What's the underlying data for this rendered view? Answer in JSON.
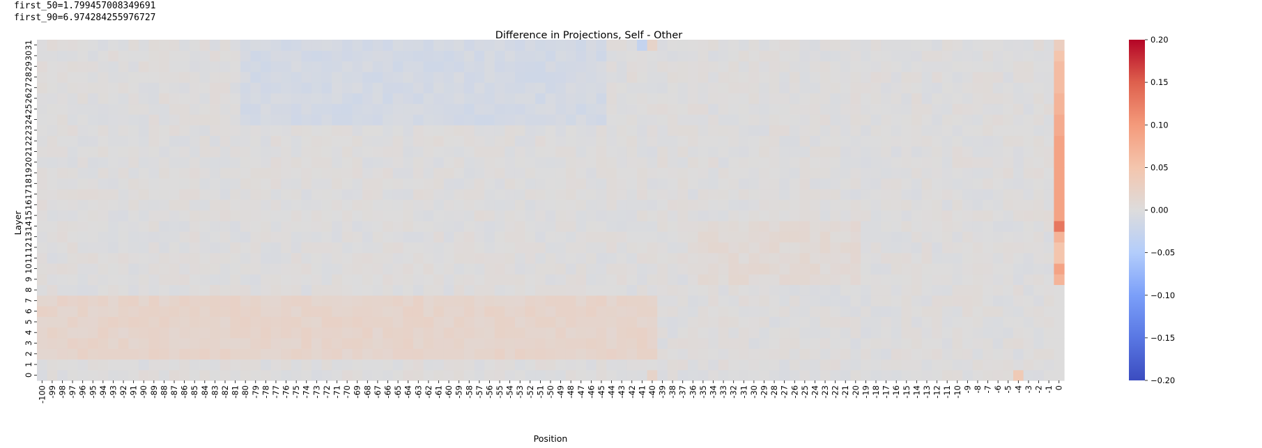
{
  "notes": {
    "first_50": "first_50=1.799457008349691",
    "first_90": "first_90=6.974284255976727"
  },
  "chart_data": {
    "type": "heatmap",
    "title": "Difference in Projections, Self - Other",
    "xlabel": "Position",
    "ylabel": "Layer",
    "x": [
      -100,
      -99,
      -98,
      -97,
      -96,
      -95,
      -94,
      -93,
      -92,
      -91,
      -90,
      -89,
      -88,
      -87,
      -86,
      -85,
      -84,
      -83,
      -82,
      -81,
      -80,
      -79,
      -78,
      -77,
      -76,
      -75,
      -74,
      -73,
      -72,
      -71,
      -70,
      -69,
      -68,
      -67,
      -66,
      -65,
      -64,
      -63,
      -62,
      -61,
      -60,
      -59,
      -58,
      -57,
      -56,
      -55,
      -54,
      -53,
      -52,
      -51,
      -50,
      -49,
      -48,
      -47,
      -46,
      -45,
      -44,
      -43,
      -42,
      -41,
      -40,
      -39,
      -38,
      -37,
      -36,
      -35,
      -34,
      -33,
      -32,
      -31,
      -30,
      -29,
      -28,
      -27,
      -26,
      -25,
      -24,
      -23,
      -22,
      -21,
      -20,
      -19,
      -18,
      -17,
      -16,
      -15,
      -14,
      -13,
      -12,
      -11,
      -10,
      -9,
      -8,
      -7,
      -6,
      -5,
      -4,
      -3,
      -2,
      -1,
      0
    ],
    "y": [
      0,
      1,
      2,
      3,
      4,
      5,
      6,
      7,
      8,
      9,
      10,
      11,
      12,
      13,
      14,
      15,
      16,
      17,
      18,
      19,
      20,
      21,
      22,
      23,
      24,
      25,
      26,
      27,
      28,
      29,
      30,
      31
    ],
    "value_range": [
      -0.2,
      0.2
    ],
    "colormap": "coolwarm",
    "colorbar": {
      "ticks": [
        0.2,
        0.15,
        0.1,
        0.05,
        0.0,
        -0.05,
        -0.1,
        -0.15,
        -0.2
      ],
      "tick_labels": [
        "0.20",
        "0.15",
        "0.10",
        "0.05",
        "0.00",
        "−0.05",
        "−0.10",
        "−0.15",
        "−0.20"
      ]
    },
    "column_0_values_by_layer": [
      0.0,
      0.0,
      0.0,
      0.0,
      0.0,
      0.0,
      0.0,
      0.0,
      0.0,
      0.07,
      0.09,
      0.05,
      0.05,
      0.07,
      0.13,
      0.09,
      0.09,
      0.09,
      0.09,
      0.09,
      0.09,
      0.09,
      0.09,
      0.08,
      0.08,
      0.07,
      0.07,
      0.06,
      0.06,
      0.06,
      0.05,
      0.03
    ],
    "notable_cells": [
      {
        "x": -4,
        "layer": 0,
        "value": 0.04
      },
      {
        "x": -41,
        "layer": 31,
        "value": -0.03
      },
      {
        "x": -40,
        "layer": 31,
        "value": 0.02
      },
      {
        "x": -40,
        "layer": 0,
        "value": 0.02
      }
    ],
    "approx_layer_bias": {
      "layers_2_to_7_left_positions": 0.018,
      "layers_24_to_31_positions_-80_to_-45": -0.012,
      "layers_9_to_14_positions_-35_to_-20": 0.008
    }
  }
}
